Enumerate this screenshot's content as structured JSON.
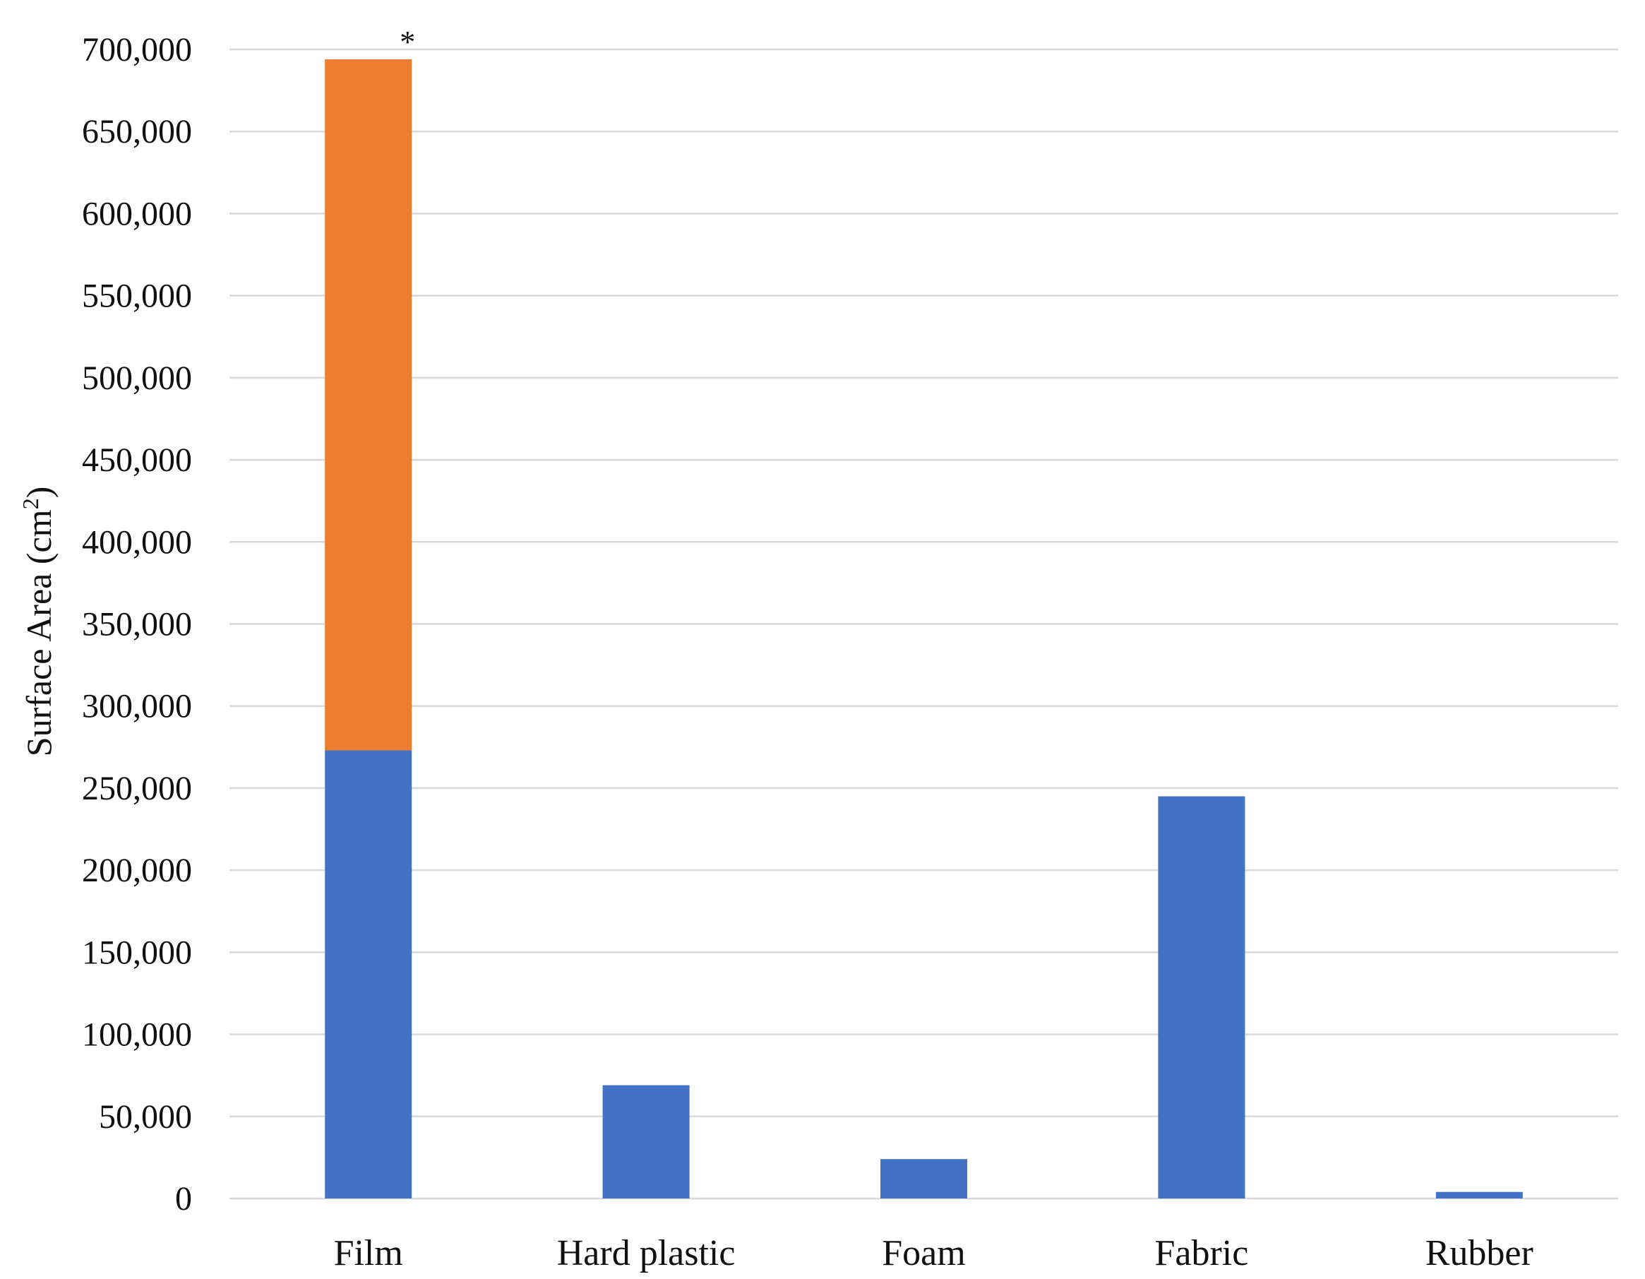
{
  "chart_data": {
    "type": "bar",
    "stacked": true,
    "categories": [
      "Film",
      "Hard plastic",
      "Foam",
      "Fabric",
      "Rubber"
    ],
    "series": [
      {
        "values": [
          273000,
          69000,
          24000,
          245000,
          4000
        ],
        "color": "#4472C4"
      },
      {
        "values": [
          421000,
          0,
          0,
          0,
          0
        ],
        "color": "#ED7D31"
      }
    ],
    "ylabel_main": "Surface Area (cm",
    "ylabel_sup": "2",
    "ylabel_close": ")",
    "ylim": [
      0,
      700000
    ],
    "ytick_step": 50000,
    "yticks": [
      "0",
      "50,000",
      "100,000",
      "150,000",
      "200,000",
      "250,000",
      "300,000",
      "350,000",
      "400,000",
      "450,000",
      "500,000",
      "550,000",
      "600,000",
      "650,000",
      "700,000"
    ],
    "grid": true,
    "legend": "none",
    "annotations": [
      {
        "category": "Film",
        "text": "*"
      }
    ],
    "gridline_color": "#d9d9d9"
  }
}
